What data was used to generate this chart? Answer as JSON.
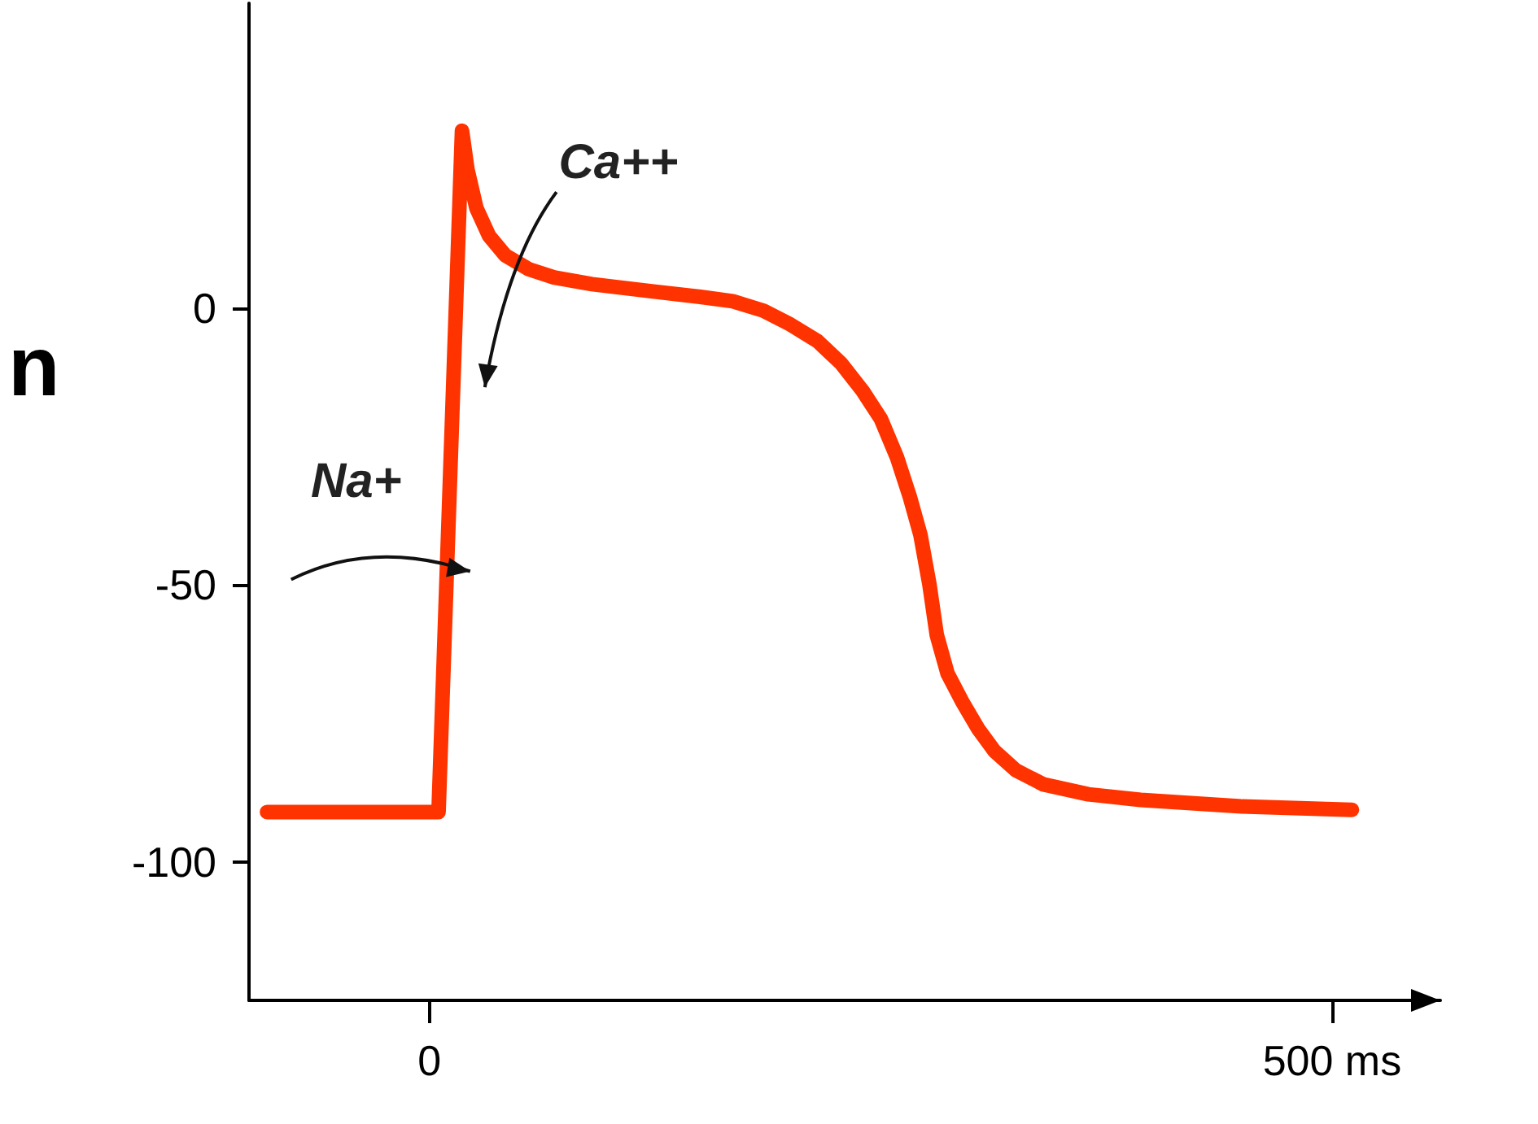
{
  "chart_data": {
    "type": "line",
    "ylabel": "n",
    "x": [
      -90,
      5,
      18,
      21,
      26,
      33,
      42,
      55,
      69,
      90,
      123,
      150,
      168,
      185,
      200,
      215,
      228,
      240,
      250,
      259,
      266,
      272,
      277,
      281,
      287,
      295,
      304,
      313,
      325,
      340,
      365,
      394,
      450,
      511
    ],
    "series": [
      {
        "color": "#ff3300",
        "values": [
          -91,
          -91,
          32,
          25,
          18,
          13,
          9.5,
          7,
          5.5,
          4.3,
          3,
          2,
          1.2,
          -0.5,
          -3,
          -6,
          -10,
          -15,
          -20,
          -27,
          -34,
          -41,
          -50,
          -59,
          -66,
          -71,
          -76,
          -80,
          -83.5,
          -86,
          -87.8,
          -88.8,
          -90,
          -90.6
        ]
      }
    ],
    "xlim": [
      -100,
      560
    ],
    "xticks": [
      0,
      {
        "value": 500,
        "label": "500 ms"
      }
    ],
    "ylim": [
      -125,
      55
    ],
    "yticks": [
      {
        "value": -100,
        "label": "-100"
      },
      {
        "value": -50,
        "label": "-50"
      },
      {
        "value": 0,
        "label": "0"
      }
    ],
    "grid": false,
    "line_style": "solid",
    "annotations": [
      "Ca++",
      "Na+"
    ]
  }
}
